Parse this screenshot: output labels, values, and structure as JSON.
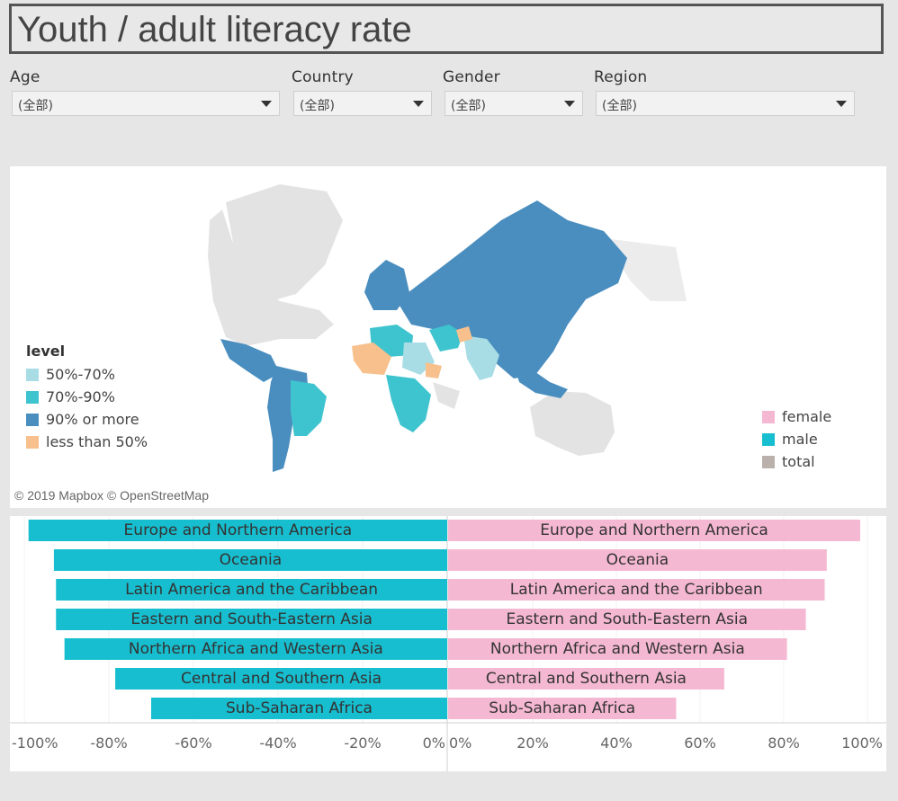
{
  "title": "Youth / adult literacy rate",
  "filters": [
    {
      "label": "Age",
      "value": "(全部)"
    },
    {
      "label": "Country",
      "value": "(全部)"
    },
    {
      "label": "Gender",
      "value": "(全部)"
    },
    {
      "label": "Region",
      "value": "(全部)"
    }
  ],
  "map": {
    "attribution": "© 2019 Mapbox © OpenStreetMap",
    "legend_level": {
      "title": "level",
      "items": [
        {
          "label": "50%-70%",
          "color": "#a8dde6"
        },
        {
          "label": "70%-90%",
          "color": "#3ec4cf"
        },
        {
          "label": "90% or more",
          "color": "#4a8ebf"
        },
        {
          "label": "less than 50%",
          "color": "#f7c08c"
        }
      ]
    },
    "legend_gender": {
      "items": [
        {
          "label": "female",
          "color": "#f5b8d2"
        },
        {
          "label": "male",
          "color": "#17becf"
        },
        {
          "label": "total",
          "color": "#bab0ac"
        }
      ]
    }
  },
  "chart_data": {
    "type": "bar",
    "orientation": "horizontal-butterfly",
    "categories": [
      "Europe and Northern America",
      "Oceania",
      "Latin America and the Caribbean",
      "Eastern and South-Eastern Asia",
      "Northern Africa and Western Asia",
      "Central and Southern Asia",
      "Sub-Saharan Africa"
    ],
    "series": [
      {
        "name": "male",
        "color": "#17becf",
        "values": [
          -99,
          -93,
          -92.5,
          -92.5,
          -90.5,
          -78.5,
          -70
        ]
      },
      {
        "name": "female",
        "color": "#f5b8d2",
        "values": [
          98.5,
          90.5,
          90,
          85.5,
          81,
          66,
          54.5
        ]
      }
    ],
    "left_axis": {
      "range": [
        -100,
        0
      ],
      "ticks": [
        "-100%",
        "-80%",
        "-60%",
        "-40%",
        "-20%",
        "0%"
      ]
    },
    "right_axis": {
      "range": [
        0,
        100
      ],
      "ticks": [
        "0%",
        "20%",
        "40%",
        "60%",
        "80%",
        "100%"
      ]
    }
  }
}
